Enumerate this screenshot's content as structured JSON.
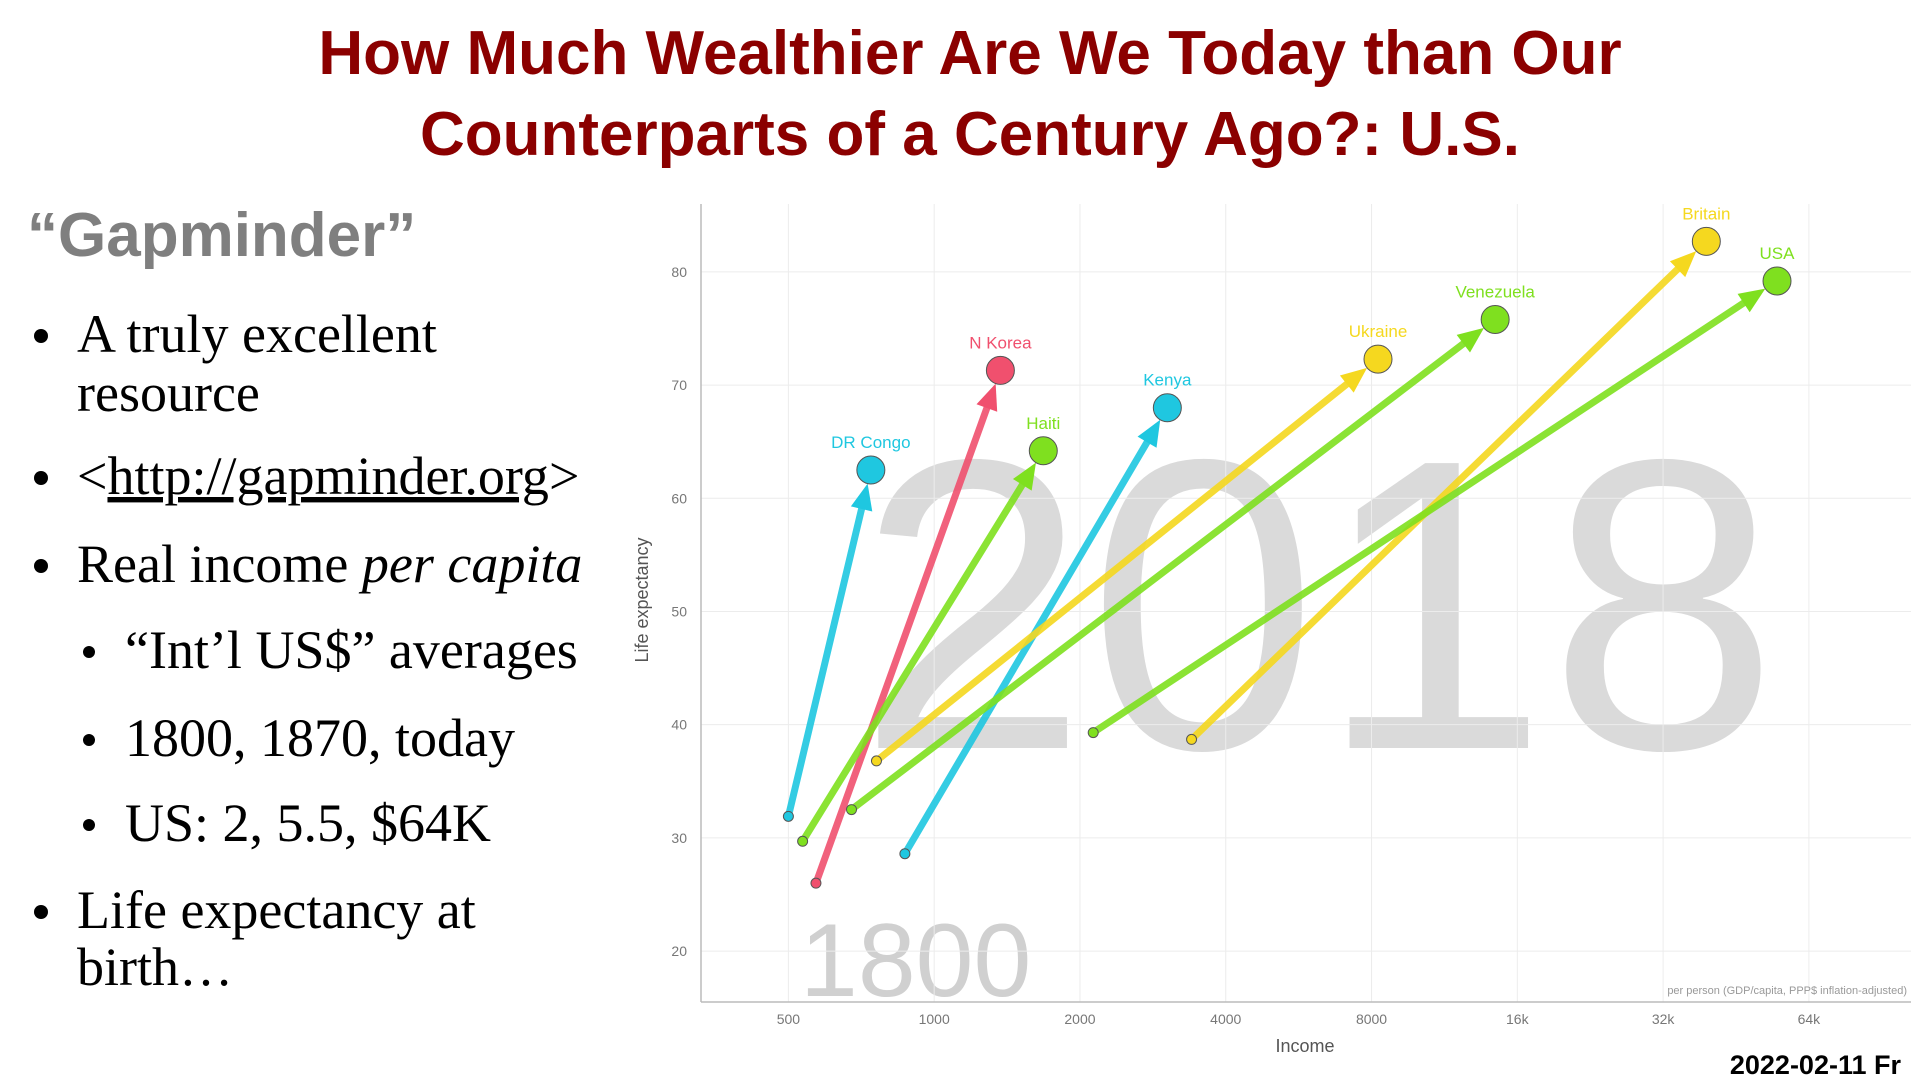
{
  "slide": {
    "title_lines": [
      "How Much Wealthier Are We Today than Our",
      "Counterparts of a Century Ago?: U.S."
    ],
    "heading": "“Gapminder”",
    "bullets": [
      {
        "lines": [
          "A truly excellent",
          "resource"
        ]
      },
      {
        "before": "<",
        "link": "http://gapminder.org",
        "after": ">"
      },
      {
        "text": "Real income ",
        "em": "per capita"
      },
      {
        "lines": [
          "Life expectancy at",
          "birth…"
        ]
      }
    ],
    "sub_bullets": [
      "“Int’l US$” averages",
      "1800, 1870, today",
      "US: 2, 5.5, $64K"
    ],
    "footer": "2022-02-11 Fr"
  },
  "chart_data": {
    "type": "scatter",
    "x_label": "Income",
    "y_label": "Life expectancy",
    "note": "per person (GDP/capita, PPP$ inflation-adjusted)",
    "watermark": "2018",
    "start_label": "1800",
    "xlog": true,
    "grid": true,
    "xlim": [
      330,
      104000
    ],
    "ylim": [
      15.5,
      86
    ],
    "xticks": [
      500,
      1000,
      2000,
      4000,
      8000,
      {
        "value": 16000,
        "label": "16k"
      },
      {
        "value": 32000,
        "label": "32k"
      },
      {
        "value": 64000,
        "label": "64k"
      }
    ],
    "yticks": [
      20,
      30,
      40,
      50,
      60,
      70,
      80
    ],
    "series": [
      {
        "name": "DR Congo",
        "color": "#1fc7e0",
        "x": [
          500,
          740
        ],
        "values": [
          31.9,
          62.5
        ]
      },
      {
        "name": "N Korea",
        "color": "#f0506e",
        "x": [
          570,
          1370
        ],
        "values": [
          26,
          71.3
        ]
      },
      {
        "name": "Haiti",
        "color": "#7fe01f",
        "x": [
          535,
          1680
        ],
        "values": [
          29.7,
          64.2
        ]
      },
      {
        "name": "Kenya",
        "color": "#1fc7e0",
        "x": [
          870,
          3030
        ],
        "values": [
          28.6,
          68
        ]
      },
      {
        "name": "Ukraine",
        "color": "#f5d81f",
        "x": [
          760,
          8250
        ],
        "values": [
          36.8,
          72.3
        ]
      },
      {
        "name": "Venezuela",
        "color": "#7fe01f",
        "x": [
          675,
          14400
        ],
        "values": [
          32.5,
          75.8
        ]
      },
      {
        "name": "Britain",
        "color": "#f5d81f",
        "x": [
          3400,
          39300
        ],
        "values": [
          38.7,
          82.7
        ]
      },
      {
        "name": "USA",
        "color": "#7fe01f",
        "x": [
          2130,
          55000
        ],
        "values": [
          39.3,
          79.2
        ]
      }
    ]
  }
}
